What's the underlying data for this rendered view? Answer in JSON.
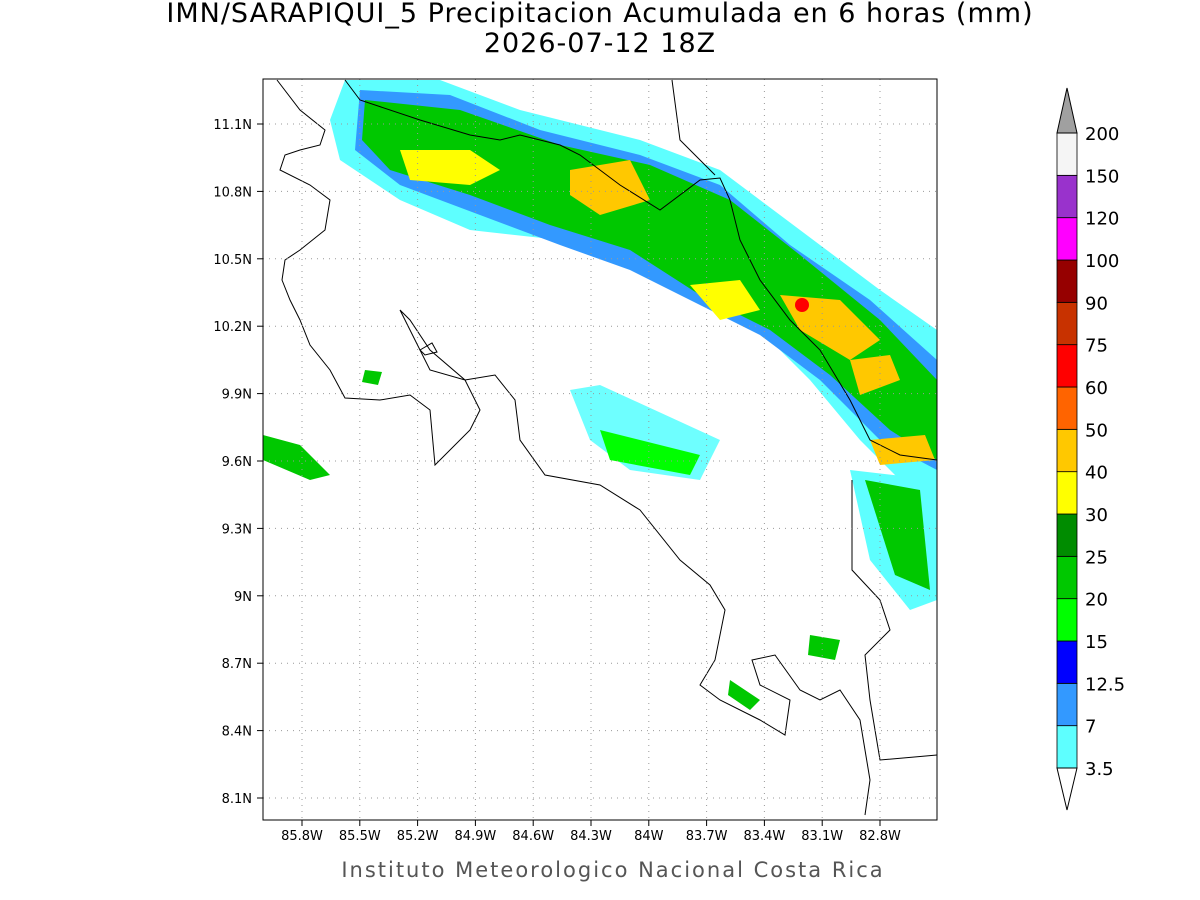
{
  "title": [
    "IMN/SARAPIQUI_5 Precipitacion Acumulada en 6 horas (mm)",
    "2026-07-12 18Z"
  ],
  "lat_labels": [
    "11.1N",
    "10.8N",
    "10.5N",
    "10.2N",
    "9.9N",
    "9.6N",
    "9.3N",
    "9N",
    "8.7N",
    "8.4N",
    "8.1N"
  ],
  "lon_labels": [
    "85.8W",
    "85.5W",
    "85.2W",
    "84.9W",
    "84.6W",
    "84.3W",
    "84W",
    "83.7W",
    "83.4W",
    "83.1W",
    "82.8W"
  ],
  "colorbar": {
    "labels": [
      3.5,
      7,
      12.5,
      15,
      20,
      25,
      30,
      40,
      50,
      60,
      75,
      90,
      100,
      120,
      150,
      200
    ],
    "colors": [
      "#5effff",
      "#3399ff",
      "#0000ff",
      "#00ff00",
      "#00c800",
      "#008c00",
      "#ffff00",
      "#ffc800",
      "#ff6400",
      "#ff0000",
      "#c83200",
      "#960000",
      "#ff00ff",
      "#9932cc",
      "#f5f5f5"
    ],
    "over_color": "#a0a0a0",
    "under_color": "#ffffff"
  },
  "footer": "Instituto Meteorologico Nacional Costa Rica"
}
